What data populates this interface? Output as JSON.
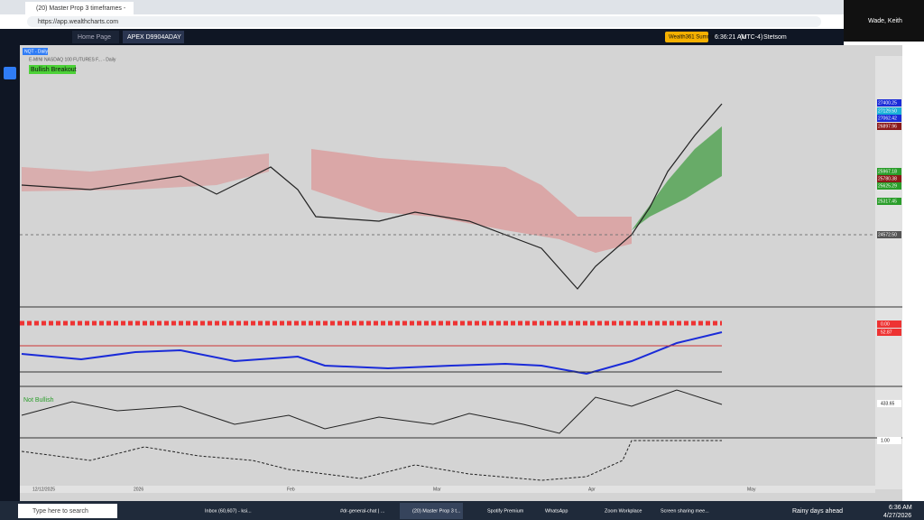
{
  "browser": {
    "tab_title": "(20) Master Prop 3 timeframes - ",
    "url": "https://app.wealthcharts.com",
    "user": "Wade, Keith"
  },
  "app": {
    "tabs": [
      "Home Page",
      "APEX D9904ADAY"
    ],
    "summit": "Wealth361 Summit",
    "time": "6:36:21 AM",
    "timezone": "(UTC-4)",
    "account": "Stetsom"
  },
  "chart": {
    "symbol_badge": "NQT - Daily",
    "legend": "E-MINI NASDAQ 100 FUTURES F... - Daily",
    "signal": "Bullish Breakout",
    "price_labels": [
      "27400.25",
      "27129.50",
      "27062.42",
      "26897.96",
      "25967.18",
      "25780.38",
      "25625.29",
      "25317.45",
      "24572.50"
    ],
    "panel_values": [
      "0.00",
      "52.87",
      "433.65",
      "1.00"
    ],
    "indicator_label": "Not Bullish",
    "dates": [
      "12/12/2025",
      "2026",
      "Feb",
      "Mar",
      "Apr",
      "May"
    ]
  },
  "taskbar": {
    "search": "Type here to search",
    "items": [
      "Inbox (60,607) - ksi...",
      "#dr-general-chat | ...",
      "(20) Master Prop 3 t...",
      "Spotify Premium",
      "WhatsApp",
      "Zoom Workplace",
      "Screen sharing mee..."
    ],
    "weather": "Rainy days ahead",
    "clock": "6:36 AM",
    "date": "4/27/2026"
  }
}
